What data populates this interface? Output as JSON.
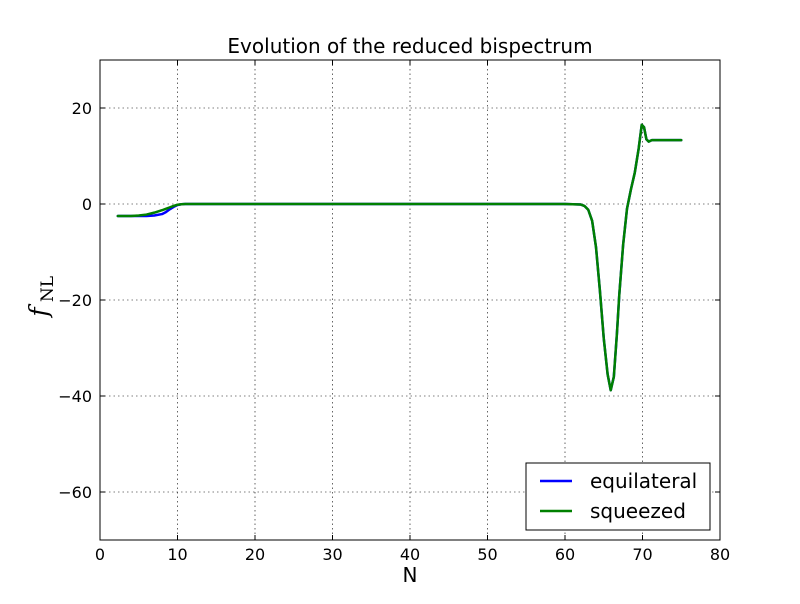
{
  "chart_data": {
    "type": "line",
    "title": "Evolution of the reduced bispectrum",
    "xlabel": "N",
    "ylabel": "f",
    "ylabel_subscript": "NL",
    "xlim": [
      0,
      80
    ],
    "ylim": [
      -70,
      30
    ],
    "xticks": [
      0,
      10,
      20,
      30,
      40,
      50,
      60,
      70,
      80
    ],
    "xtick_labels": [
      "0",
      "10",
      "20",
      "30",
      "40",
      "50",
      "60",
      "70",
      "80"
    ],
    "yticks": [
      -60,
      -40,
      -20,
      0,
      20
    ],
    "ytick_labels": [
      "−60",
      "−40",
      "−20",
      "0",
      "20"
    ],
    "grid": true,
    "legend_position": "lower-right",
    "series": [
      {
        "name": "equilateral",
        "color": "#0000ff",
        "x": [
          2.3,
          4.0,
          5.0,
          6.0,
          7.0,
          8.0,
          8.5,
          9.0,
          9.5,
          10.0,
          10.5,
          11.0,
          12.0,
          14.0,
          20.0,
          30.0,
          40.0,
          50.0,
          60.0,
          62.0,
          62.5,
          63.0,
          63.5,
          64.0,
          64.5,
          65.0,
          65.5,
          65.9,
          66.3,
          66.7,
          67.0,
          67.5,
          68.0,
          68.5,
          69.0,
          69.5,
          69.9,
          70.2,
          70.5,
          70.8,
          71.2,
          72.0,
          75.0
        ],
        "y": [
          -2.5,
          -2.5,
          -2.5,
          -2.5,
          -2.4,
          -2.1,
          -1.7,
          -1.1,
          -0.6,
          -0.2,
          -0.05,
          0.0,
          0.0,
          0.0,
          0.0,
          0.0,
          0.0,
          0.0,
          0.0,
          -0.1,
          -0.4,
          -1.2,
          -3.5,
          -9.0,
          -18.0,
          -28.0,
          -35.5,
          -38.8,
          -36.0,
          -27.0,
          -19.0,
          -8.5,
          -1.0,
          3.0,
          6.5,
          11.5,
          16.5,
          16.0,
          13.5,
          13.0,
          13.3,
          13.3,
          13.3
        ]
      },
      {
        "name": "squeezed",
        "color": "#008000",
        "x": [
          2.3,
          4.0,
          5.0,
          6.0,
          7.0,
          8.0,
          8.5,
          9.0,
          9.5,
          10.0,
          10.5,
          11.0,
          12.0,
          14.0,
          20.0,
          30.0,
          40.0,
          50.0,
          60.0,
          62.0,
          62.5,
          63.0,
          63.5,
          64.0,
          64.5,
          65.0,
          65.5,
          65.9,
          66.3,
          66.7,
          67.0,
          67.5,
          68.0,
          68.5,
          69.0,
          69.5,
          69.9,
          70.2,
          70.5,
          70.8,
          71.2,
          72.0,
          75.0
        ],
        "y": [
          -2.5,
          -2.5,
          -2.4,
          -2.2,
          -1.8,
          -1.3,
          -1.0,
          -0.7,
          -0.4,
          -0.15,
          -0.05,
          0.0,
          0.0,
          0.0,
          0.0,
          0.0,
          0.0,
          0.0,
          0.0,
          -0.1,
          -0.4,
          -1.2,
          -3.5,
          -9.0,
          -18.0,
          -28.0,
          -35.5,
          -38.8,
          -36.0,
          -27.0,
          -19.0,
          -8.5,
          -1.0,
          3.0,
          6.5,
          11.5,
          16.5,
          16.0,
          13.5,
          13.0,
          13.3,
          13.3,
          13.3
        ]
      }
    ]
  }
}
